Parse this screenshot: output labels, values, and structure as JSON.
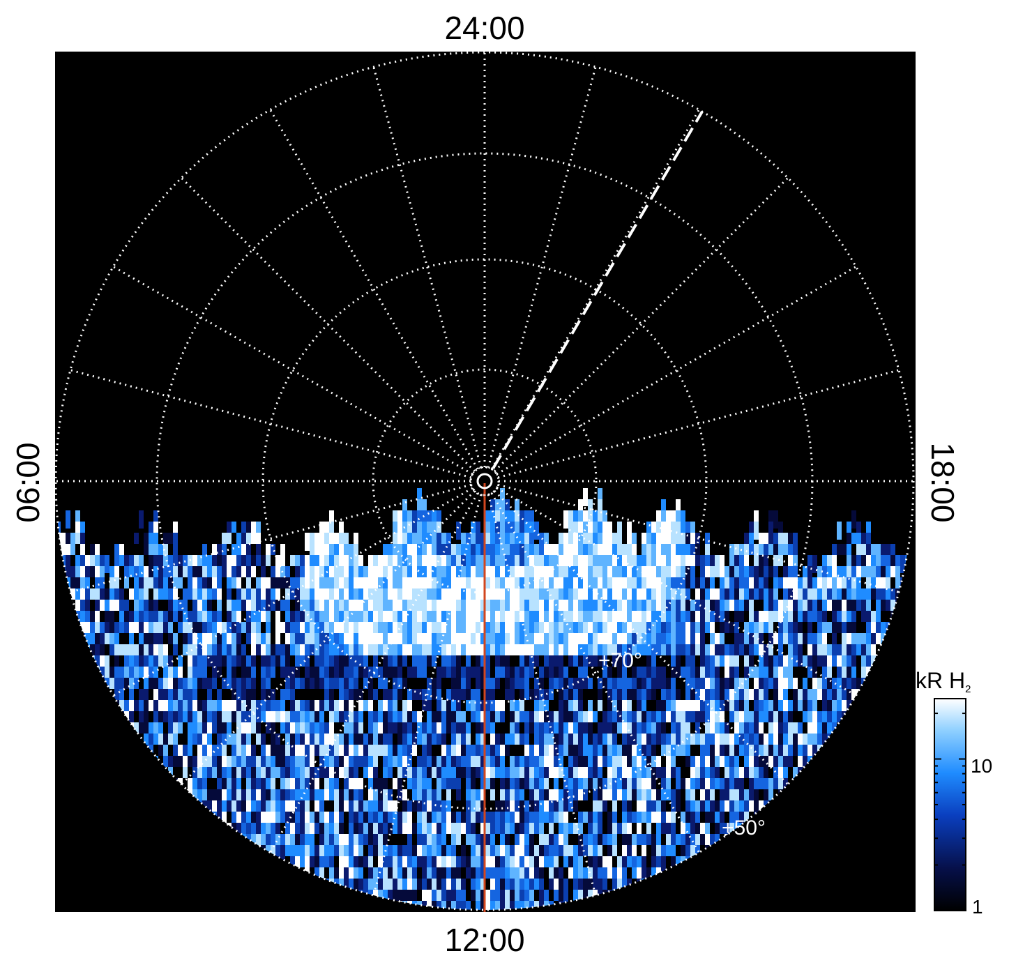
{
  "plot": {
    "type": "polar-projection",
    "labels": {
      "top": "24:00",
      "bottom": "12:00",
      "left": "06:00",
      "right": "18:00"
    },
    "latitude_labels": [
      "+70°",
      "+50°"
    ],
    "colors": {
      "background": "#000000",
      "grid": "#ffffff",
      "meridian_line": "#d2461e",
      "aurora_low": "#0a1a6e",
      "aurora_mid": "#1f8cff",
      "aurora_high": "#ffffff"
    },
    "grid": "dotted",
    "emission_region": "dayside (bottom half)"
  },
  "colorbar": {
    "label_prefix": "kR H",
    "label_subscript": "2",
    "scale": "log",
    "ticks": [
      "10",
      "1"
    ],
    "range": [
      1,
      25
    ]
  }
}
